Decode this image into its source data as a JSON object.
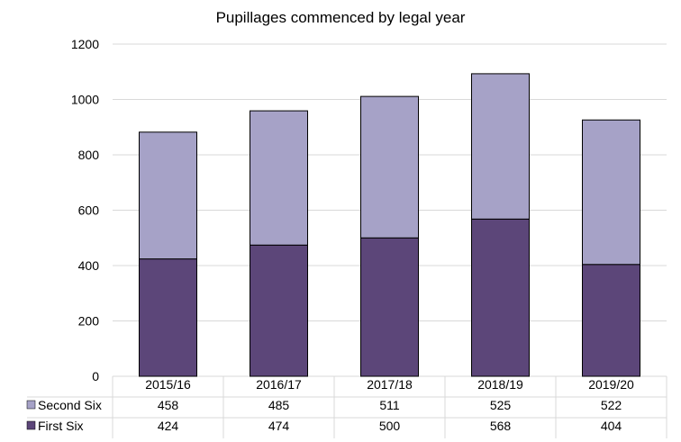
{
  "chart_data": {
    "type": "bar",
    "stacked": true,
    "title": "Pupillages commenced by legal year",
    "xlabel": "",
    "ylabel": "",
    "categories": [
      "2015/16",
      "2016/17",
      "2017/18",
      "2018/19",
      "2019/20"
    ],
    "ylim": [
      0,
      1200
    ],
    "yticks": [
      0,
      200,
      400,
      600,
      800,
      1000,
      1200
    ],
    "grid": true,
    "legend_placement": "data table below chart",
    "series": [
      {
        "name": "First Six",
        "values": [
          424,
          474,
          500,
          568,
          404
        ],
        "color": "#5c4679"
      },
      {
        "name": "Second Six",
        "values": [
          458,
          485,
          511,
          525,
          522
        ],
        "color": "#a6a2c7"
      }
    ],
    "table_rows": [
      "Second Six",
      "First Six"
    ]
  }
}
